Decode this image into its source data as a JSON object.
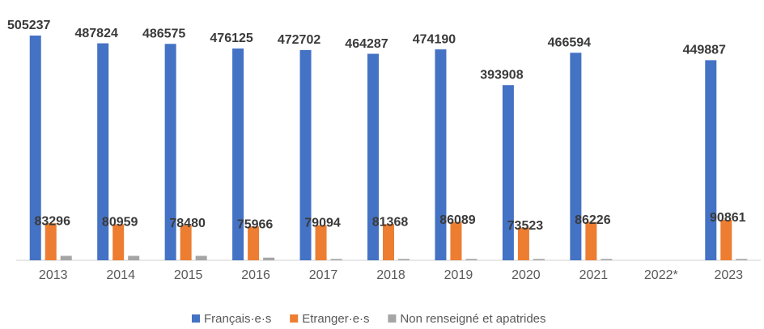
{
  "chart_data": {
    "type": "bar",
    "categories": [
      "2013",
      "2014",
      "2015",
      "2016",
      "2017",
      "2018",
      "2019",
      "2020",
      "2021",
      "2022*",
      "2023"
    ],
    "series": [
      {
        "name": "Français·e·s",
        "color": "#4472c4",
        "data_labels": true,
        "values": [
          505237,
          487824,
          486575,
          476125,
          472702,
          464287,
          474190,
          393908,
          466594,
          null,
          449887
        ]
      },
      {
        "name": "Etranger·e·s",
        "color": "#ed7d31",
        "data_labels": true,
        "values": [
          83296,
          80959,
          78480,
          75966,
          79094,
          81368,
          86089,
          73523,
          86226,
          null,
          90861
        ]
      },
      {
        "name": "Non renseigné et apatrides",
        "color": "#a5a5a5",
        "data_labels": false,
        "values": [
          10000,
          10000,
          10000,
          6000,
          3000,
          3000,
          3000,
          3000,
          3000,
          null,
          3000
        ]
      }
    ],
    "legend": "bottom"
  }
}
